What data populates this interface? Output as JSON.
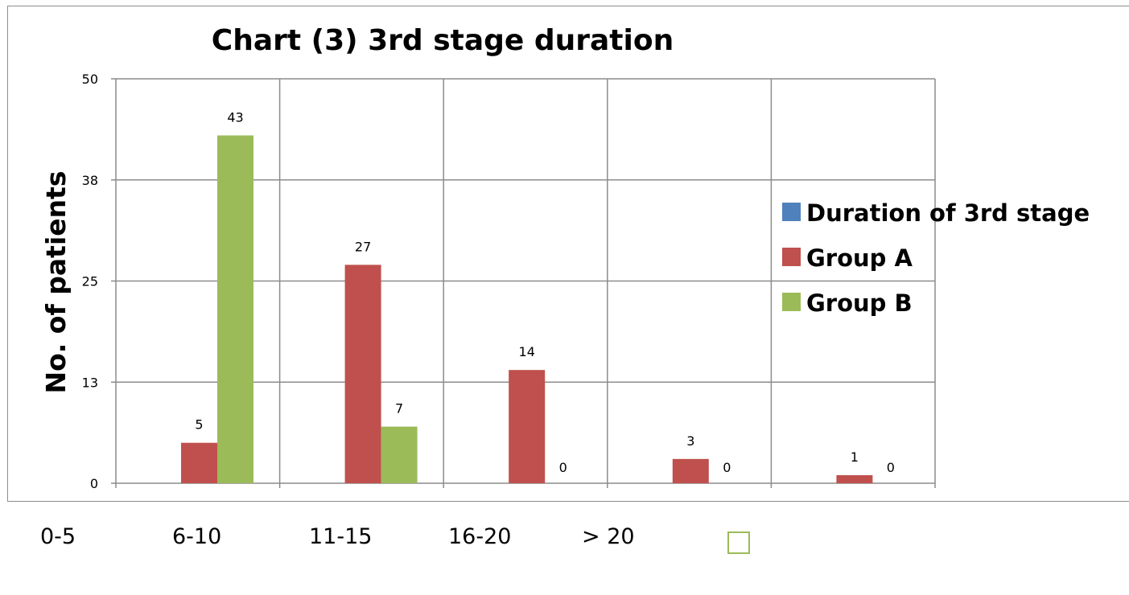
{
  "chart_data": {
    "type": "bar",
    "title": "Chart (3) 3rd stage duration",
    "ylabel": "No. of patients",
    "ylim": [
      0,
      50
    ],
    "yticks": [
      "0",
      "13",
      "25",
      "38",
      "50"
    ],
    "ytick_values": [
      0,
      12.5,
      25,
      37.5,
      50
    ],
    "grid": true,
    "legend_placement": "right",
    "categories": [
      "0-5",
      "6-10",
      "11-15",
      "16-20",
      "> 20"
    ],
    "series": [
      {
        "name": "Duration of 3rd stage",
        "color": "#4f81bd",
        "values": [
          null,
          null,
          null,
          null,
          null
        ],
        "labels": [
          null,
          null,
          null,
          null,
          null
        ]
      },
      {
        "name": "Group A",
        "color": "#c0504d",
        "values": [
          5,
          27,
          14,
          3,
          1
        ],
        "labels": [
          "5",
          "27",
          "14",
          "3",
          "1"
        ]
      },
      {
        "name": "Group B",
        "color": "#9bbb59",
        "values": [
          43,
          7,
          0,
          0,
          0
        ],
        "labels": [
          "43",
          "7",
          "0",
          "0",
          "0"
        ]
      }
    ],
    "stray_marker_color": "#9bbb59",
    "stray_text": "Group B"
  }
}
